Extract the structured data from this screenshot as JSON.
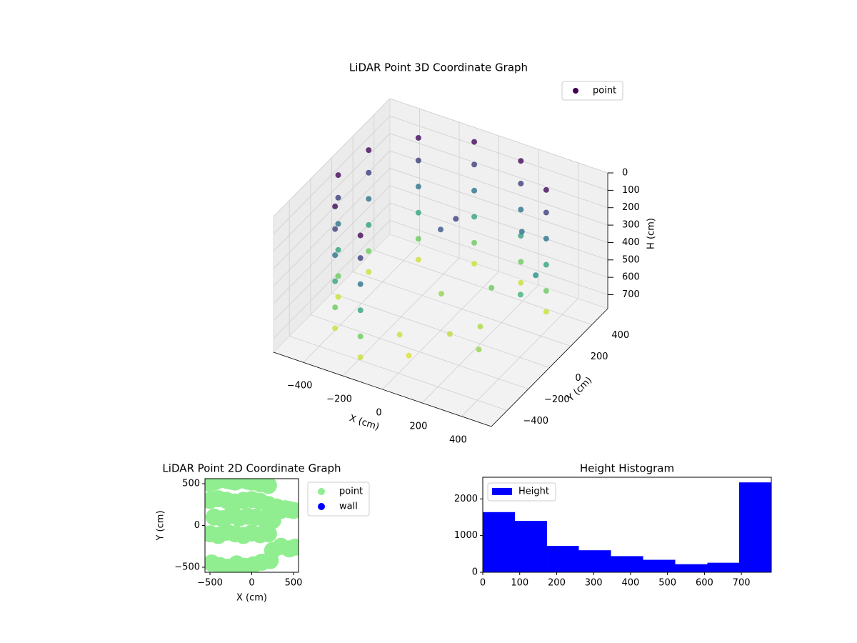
{
  "chart_data": [
    {
      "type": "scatter3d",
      "title": "LiDAR Point 3D Coordinate Graph",
      "colormap": "viridis",
      "xlabel": "X (cm)",
      "ylabel": "Y (cm)",
      "zlabel": "H (cm)",
      "xlim": [
        -550,
        550
      ],
      "ylim": [
        -550,
        550
      ],
      "zlim": [
        0,
        780
      ],
      "zinverted": true,
      "legend": "upper right",
      "xticks": [
        {
          "value": -400,
          "label": "−400"
        },
        {
          "value": -200,
          "label": "−200"
        },
        0,
        200,
        400
      ],
      "yticks": [
        {
          "value": -400,
          "label": "−400"
        },
        {
          "value": -200,
          "label": "−200"
        },
        0,
        200,
        400
      ],
      "zticks": [
        0,
        100,
        200,
        300,
        400,
        500,
        600,
        700
      ],
      "series": [
        {
          "name": "point",
          "x": [
            -83,
            -83,
            -83,
            -83,
            -83,
            -83,
            -309,
            -309,
            -309,
            -309,
            -309,
            -309,
            -451,
            -451,
            -451,
            -451,
            -451,
            -451,
            -473,
            -473,
            -473,
            -473,
            -473,
            -473,
            -368,
            -368,
            -368,
            -368,
            -368,
            -368,
            -164,
            -164,
            -164,
            -164,
            -164,
            -164,
            164,
            164,
            164,
            164,
            164,
            164,
            368,
            368,
            368,
            368,
            368,
            368,
            0,
            100,
            200,
            -100,
            300,
            150,
            350,
            -50,
            0,
            50,
            250,
            400
          ],
          "y": [
            473,
            473,
            473,
            473,
            473,
            473,
            368,
            368,
            368,
            368,
            368,
            368,
            164,
            164,
            164,
            164,
            164,
            164,
            -83,
            -83,
            -83,
            -83,
            -83,
            -83,
            -309,
            -309,
            -309,
            -309,
            -309,
            -309,
            -451,
            -451,
            -451,
            -451,
            -451,
            -451,
            451,
            451,
            451,
            451,
            451,
            451,
            309,
            309,
            309,
            309,
            309,
            309,
            -300,
            -100,
            0,
            -200,
            -200,
            200,
            100,
            100,
            0,
            50,
            300,
            150
          ],
          "z": [
            20,
            150,
            300,
            450,
            600,
            720,
            20,
            150,
            300,
            450,
            600,
            720,
            20,
            150,
            300,
            450,
            600,
            720,
            20,
            150,
            300,
            450,
            600,
            720,
            20,
            150,
            300,
            450,
            600,
            720,
            20,
            150,
            300,
            450,
            600,
            720,
            20,
            150,
            300,
            450,
            600,
            720,
            20,
            150,
            300,
            450,
            600,
            720,
            740,
            700,
            680,
            720,
            650,
            600,
            500,
            650,
            200,
            150,
            300,
            400
          ]
        }
      ]
    },
    {
      "type": "scatter",
      "title": "LiDAR Point 2D Coordinate Graph",
      "xlabel": "X (cm)",
      "ylabel": "Y (cm)",
      "xlim": [
        -560,
        560
      ],
      "ylim": [
        -560,
        560
      ],
      "legend": "outside right",
      "xticks": [
        {
          "value": -500,
          "label": "−500"
        },
        0,
        500
      ],
      "yticks": [
        {
          "value": -500,
          "label": "−500"
        },
        0,
        500
      ],
      "series": [
        {
          "name": "point",
          "color": "#90ee90",
          "x": [
            -500,
            -450,
            -400,
            -350,
            -300,
            -250,
            -200,
            -150,
            -100,
            -50,
            0,
            50,
            100,
            150,
            200,
            -500,
            -400,
            -300,
            -200,
            -100,
            0,
            100,
            200,
            -450,
            -350,
            -250,
            -150,
            -50,
            50,
            150,
            250,
            -500,
            -400,
            -300,
            -200,
            -100,
            0,
            100,
            200,
            250,
            300,
            350,
            400,
            450,
            500,
            350,
            450,
            520,
            -480,
            -380,
            -280,
            -180,
            -80,
            20,
            120,
            220,
            250
          ],
          "y": [
            500,
            520,
            540,
            550,
            540,
            530,
            520,
            540,
            550,
            530,
            520,
            540,
            500,
            520,
            480,
            300,
            320,
            300,
            280,
            300,
            310,
            290,
            250,
            100,
            80,
            120,
            90,
            110,
            100,
            80,
            60,
            -100,
            -120,
            -80,
            -100,
            -120,
            -90,
            -110,
            -100,
            200,
            220,
            180,
            200,
            190,
            180,
            -250,
            -280,
            -260,
            -450,
            -480,
            -500,
            -460,
            -490,
            -470,
            -440,
            -420,
            -300
          ]
        },
        {
          "name": "wall",
          "color": "#0000ff",
          "x": [],
          "y": []
        }
      ]
    },
    {
      "type": "histogram",
      "title": "Height Histogram",
      "legend": "upper left",
      "series": [
        {
          "name": "Height",
          "color": "#0000ff",
          "bins": [
            0,
            87,
            174,
            260,
            347,
            434,
            521,
            608,
            694,
            781
          ],
          "values": [
            1640,
            1400,
            720,
            600,
            440,
            340,
            220,
            260,
            2450
          ]
        }
      ],
      "xlim": [
        0,
        781
      ],
      "ylim": [
        0,
        2590
      ],
      "xticks": [
        0,
        100,
        200,
        300,
        400,
        500,
        600,
        700
      ],
      "yticks": [
        0,
        1000,
        2000
      ]
    }
  ]
}
